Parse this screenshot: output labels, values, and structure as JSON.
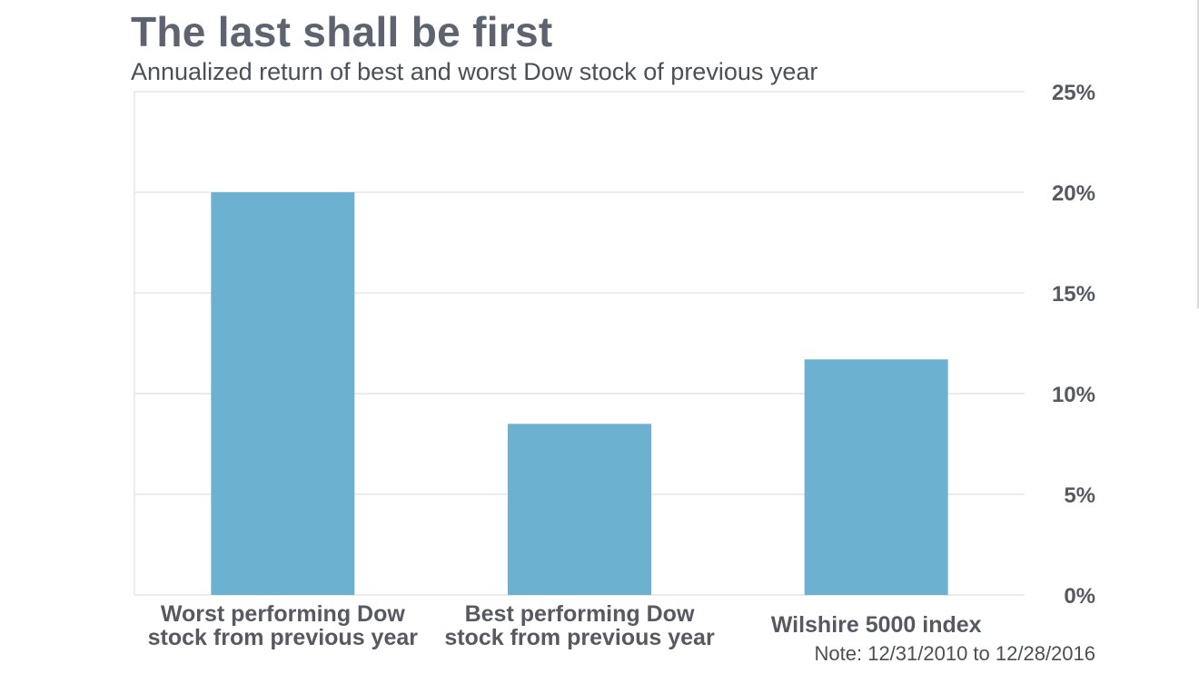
{
  "title": "The last shall be first",
  "subtitle": "Annualized return of best and worst Dow stock of previous year",
  "note": "Note: 12/31/2010 to 12/28/2016",
  "colors": {
    "bar": "#6cb1cf",
    "grid": "#e6e6e6",
    "text": "#555a62"
  },
  "chart_data": {
    "type": "bar",
    "title": "The last shall be first",
    "subtitle": "Annualized return of best and worst Dow stock of previous year",
    "categories": [
      [
        "Worst performing Dow",
        "stock from previous year"
      ],
      [
        "Best performing Dow",
        "stock from previous year"
      ],
      [
        "Wilshire 5000 index"
      ]
    ],
    "values": [
      20.0,
      8.5,
      11.7
    ],
    "ylim": [
      0,
      25
    ],
    "yticks": [
      0,
      5,
      10,
      15,
      20,
      25
    ],
    "ytick_labels": [
      "0%",
      "5%",
      "10%",
      "15%",
      "20%",
      "25%"
    ],
    "y_axis_side": "right",
    "grid": true,
    "legend": "none"
  }
}
